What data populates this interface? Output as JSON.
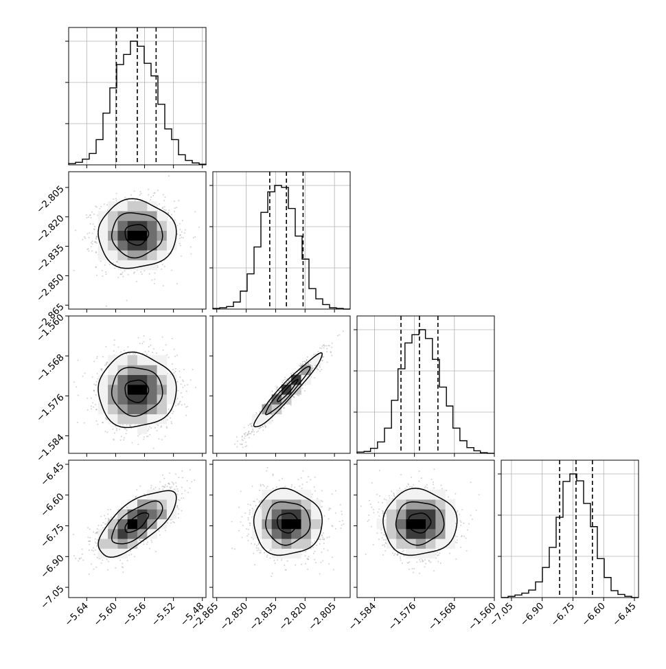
{
  "chart_data": {
    "type": "corner",
    "parameters": [
      {
        "range": [
          -5.665,
          -5.475
        ],
        "ticks": [
          -5.64,
          -5.6,
          -5.56,
          -5.52,
          -5.48
        ],
        "tick_labels": [
          "−5.64",
          "−5.60",
          "−5.56",
          "−5.52",
          "−5.48"
        ],
        "quantiles": [
          -5.599,
          -5.57,
          -5.544
        ],
        "mean": -5.571,
        "sd": 0.027
      },
      {
        "range": [
          -2.867,
          -2.797
        ],
        "ticks": [
          -2.865,
          -2.85,
          -2.835,
          -2.82,
          -2.805
        ],
        "tick_labels": [
          "−2.865",
          "−2.850",
          "−2.835",
          "−2.820",
          "−2.805"
        ],
        "quantiles": [
          -2.838,
          -2.8295,
          -2.821
        ],
        "mean": -2.829,
        "sd": 0.0087
      },
      {
        "range": [
          -1.5875,
          -1.56
        ],
        "ticks": [
          -1.584,
          -1.576,
          -1.568,
          -1.56
        ],
        "tick_labels": [
          "−1.584",
          "−1.576",
          "−1.568",
          "−1.560"
        ],
        "quantiles": [
          -1.5787,
          -1.575,
          -1.5713
        ],
        "mean": -1.575,
        "sd": 0.0037
      },
      {
        "range": [
          -7.1,
          -6.43
        ],
        "ticks": [
          -7.05,
          -6.9,
          -6.75,
          -6.6,
          -6.45
        ],
        "tick_labels": [
          "−7.05",
          "−6.90",
          "−6.75",
          "−6.60",
          "−6.45"
        ],
        "quantiles": [
          -6.815,
          -6.735,
          -6.655
        ],
        "mean": -6.735,
        "sd": 0.08
      }
    ],
    "correlations": [
      [
        1,
        0,
        0,
        0.7
      ],
      [
        0,
        1,
        0.96,
        0
      ],
      [
        0,
        0.96,
        1,
        0
      ],
      [
        0.7,
        0,
        0,
        1
      ]
    ],
    "histograms": [
      {
        "bin_edges": [
          -5.665,
          -5.6555,
          -5.646,
          -5.6365,
          -5.627,
          -5.6175,
          -5.608,
          -5.5985,
          -5.589,
          -5.5795,
          -5.57,
          -5.5605,
          -5.551,
          -5.5415,
          -5.532,
          -5.5225,
          -5.513,
          -5.5035,
          -5.494,
          -5.4845,
          -5.475
        ],
        "counts": [
          2,
          4,
          9,
          18,
          40,
          82,
          122,
          159,
          175,
          196,
          188,
          161,
          141,
          96,
          57,
          40,
          16,
          7,
          3,
          1
        ]
      },
      {
        "bin_edges": [
          -2.867,
          -2.8635,
          -2.86,
          -2.8565,
          -2.853,
          -2.8495,
          -2.846,
          -2.8425,
          -2.839,
          -2.8355,
          -2.832,
          -2.8285,
          -2.825,
          -2.8215,
          -2.818,
          -2.8145,
          -2.811,
          -2.8075,
          -2.804,
          -2.8005,
          -2.797
        ],
        "counts": [
          1,
          2,
          4,
          11,
          28,
          55,
          97,
          151,
          183,
          193,
          190,
          157,
          114,
          78,
          32,
          16,
          7,
          2,
          1,
          0
        ]
      },
      {
        "bin_edges": [
          -1.5875,
          -1.5861,
          -1.5848,
          -1.5834,
          -1.582,
          -1.5806,
          -1.5793,
          -1.5779,
          -1.5765,
          -1.5751,
          -1.5738,
          -1.5724,
          -1.571,
          -1.5696,
          -1.5683,
          -1.5669,
          -1.5655,
          -1.5641,
          -1.5628,
          -1.5614,
          -1.56
        ],
        "counts": [
          2,
          3,
          8,
          18,
          40,
          84,
          134,
          175,
          188,
          196,
          182,
          149,
          105,
          75,
          40,
          20,
          9,
          4,
          1,
          0
        ]
      },
      {
        "bin_edges": [
          -7.1,
          -7.0665,
          -7.033,
          -6.9995,
          -6.966,
          -6.9325,
          -6.899,
          -6.8655,
          -6.832,
          -6.7985,
          -6.765,
          -6.7315,
          -6.698,
          -6.6645,
          -6.631,
          -6.5975,
          -6.564,
          -6.5305,
          -6.497,
          -6.4635,
          -6.43
        ],
        "counts": [
          0,
          2,
          4,
          7,
          12,
          25,
          48,
          80,
          128,
          185,
          197,
          186,
          150,
          113,
          62,
          32,
          11,
          5,
          2,
          0
        ]
      }
    ],
    "grid": true,
    "quantile_linestyle": "dashed"
  },
  "colors": {
    "hist_line": "#000000",
    "grid": "#b0b0b0",
    "points": "#9a9a9a",
    "contour_line": "#000000",
    "density_levels": [
      "#f2f2f2",
      "#cccccc",
      "#9e9e9e",
      "#6e6e6e",
      "#3c3c3c",
      "#000000"
    ]
  }
}
